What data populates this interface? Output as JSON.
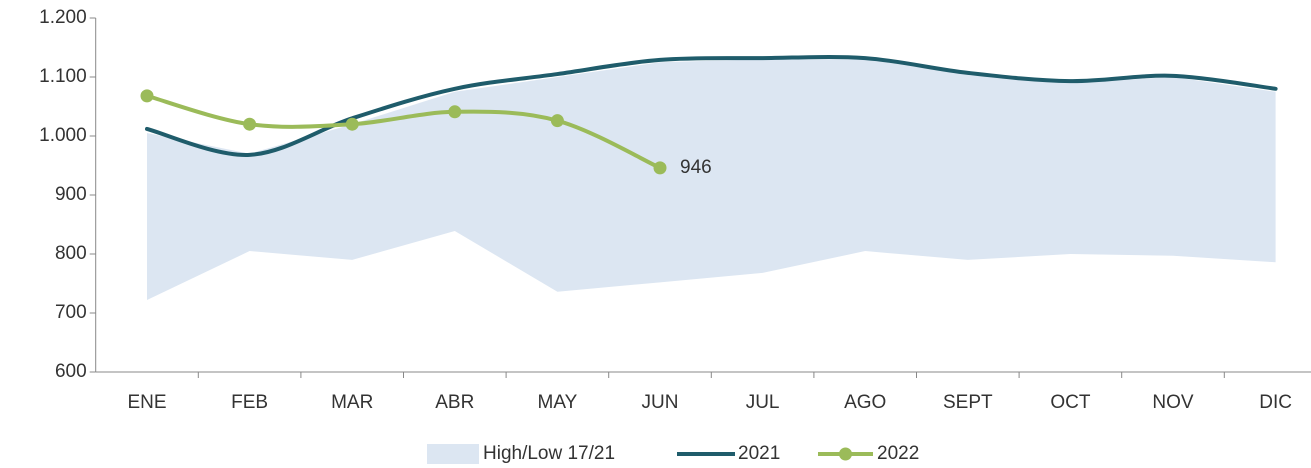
{
  "chart_data": {
    "type": "line",
    "categories": [
      "ENE",
      "FEB",
      "MAR",
      "ABR",
      "MAY",
      "JUN",
      "JUL",
      "AGO",
      "SEPT",
      "OCT",
      "NOV",
      "DIC"
    ],
    "series": [
      {
        "name": "High/Low 17/21",
        "color": "#dce6f2",
        "high": [
          1005,
          970,
          1020,
          1075,
          1100,
          1125,
          1130,
          1130,
          1105,
          1090,
          1100,
          1075
        ],
        "low": [
          722,
          805,
          790,
          839,
          736,
          752,
          768,
          805,
          790,
          800,
          797,
          786
        ]
      },
      {
        "name": "2021",
        "color": "#1f5c6b",
        "values": [
          1012,
          968,
          1030,
          1080,
          1105,
          1129,
          1132,
          1132,
          1107,
          1093,
          1102,
          1080
        ]
      },
      {
        "name": "2022",
        "color": "#9bbb59",
        "values": [
          1068,
          1020,
          1020,
          1041,
          1026,
          946,
          null,
          null,
          null,
          null,
          null,
          null
        ]
      }
    ],
    "ylim": [
      600,
      1200
    ],
    "yticks": [
      600,
      700,
      800,
      900,
      {
        "value": 1000,
        "label": "1.000"
      },
      {
        "value": 1100,
        "label": "1.100"
      },
      {
        "value": 1200,
        "label": "1.200"
      }
    ],
    "grid": false,
    "legend": "bottom"
  }
}
